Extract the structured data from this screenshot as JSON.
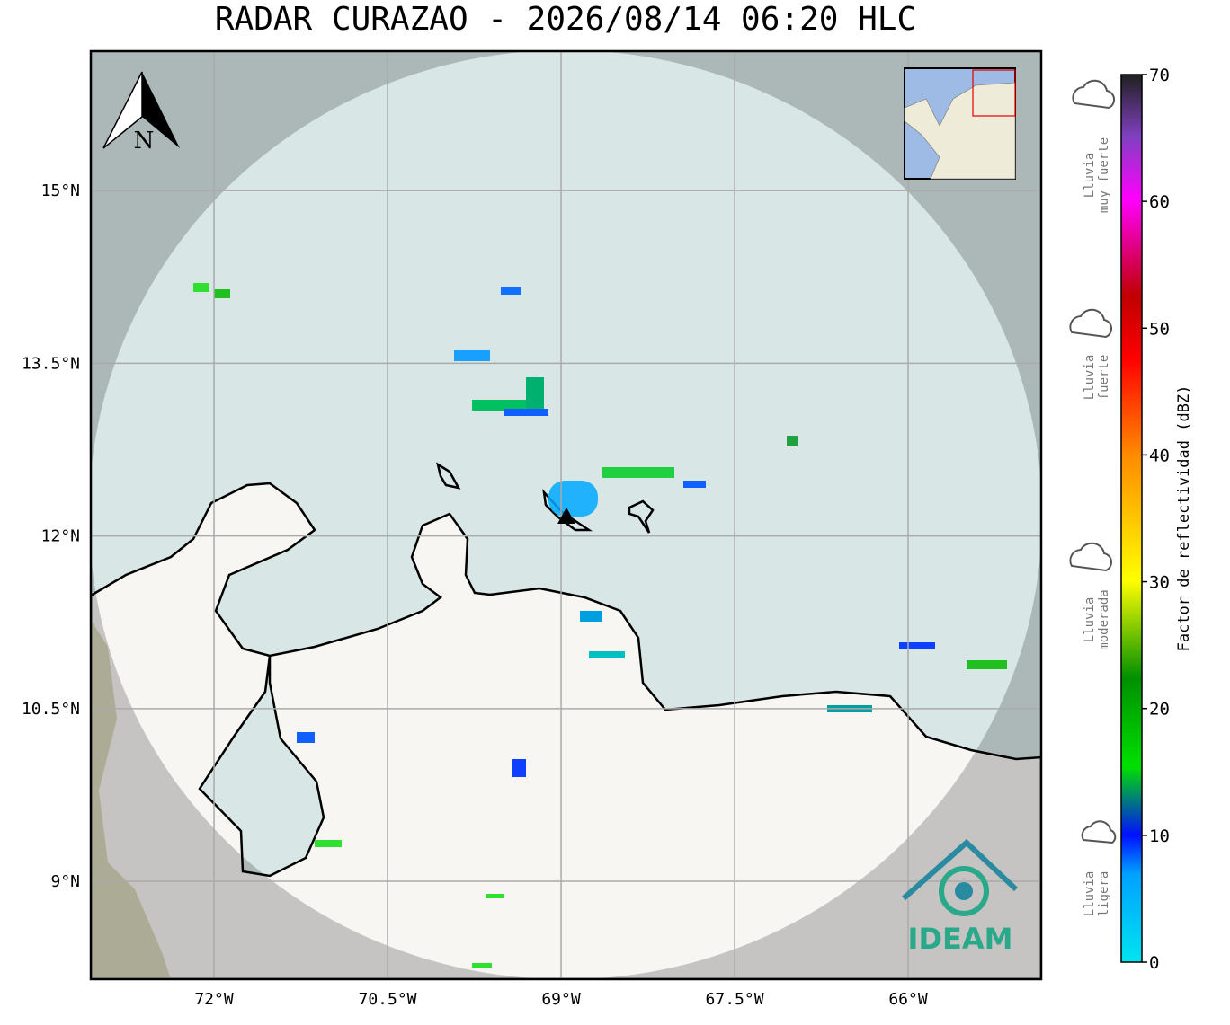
{
  "map": {
    "title": "RADAR CURAZAO - 2026/08/14 06:20 HLC",
    "north_label": "N",
    "lonlim": [
      -73.065,
      -64.85
    ],
    "latlim": [
      8.15,
      16.21
    ],
    "lon_ticks": [
      {
        "value": -72,
        "label": "72°W"
      },
      {
        "value": -70.5,
        "label": "70.5°W"
      },
      {
        "value": -69,
        "label": "69°W"
      },
      {
        "value": -67.5,
        "label": "67.5°W"
      },
      {
        "value": -66,
        "label": "66°W"
      }
    ],
    "lat_ticks": [
      {
        "value": 15,
        "label": "15°N"
      },
      {
        "value": 13.5,
        "label": "13.5°N"
      },
      {
        "value": 12,
        "label": "12°N"
      },
      {
        "value": 10.5,
        "label": "10.5°N"
      },
      {
        "value": 9,
        "label": "9°N"
      }
    ],
    "logo": "IDEAM"
  },
  "colorbar": {
    "label": "Factor de reflectividad (dBZ)",
    "lim": [
      0,
      70
    ],
    "ticks": [
      0,
      10,
      20,
      30,
      40,
      50,
      60,
      70
    ]
  },
  "legend": [
    {
      "lines": [
        "Lluvia",
        "muy fuerte"
      ]
    },
    {
      "lines": [
        "Lluvia",
        "fuerte"
      ]
    },
    {
      "lines": [
        "Lluvia",
        "moderada"
      ]
    },
    {
      "lines": [
        "Lluvia",
        "ligera"
      ]
    }
  ]
}
